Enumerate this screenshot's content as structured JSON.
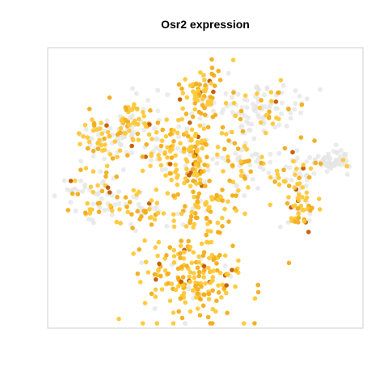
{
  "chart_data": {
    "type": "scatter",
    "title": "Osr2 expression",
    "xlabel": "",
    "ylabel": "",
    "xlim": [
      0,
      100
    ],
    "ylim": [
      0,
      100
    ],
    "grid": false,
    "axes_visible": false,
    "legend": "none",
    "colors": {
      "background": "#ffffff",
      "frame": "#cfcfcf",
      "unexpressed": "#e6e6e6",
      "expressed_low": "#ffc838",
      "expressed_mid": "#f3ad1a",
      "expressed_high": "#c25b00"
    },
    "clusters": [
      {
        "center": [
          49,
          87
        ],
        "spread": [
          3.5,
          4.5
        ],
        "n": 70,
        "expr": 0.9
      },
      {
        "center": [
          68,
          80
        ],
        "spread": [
          8,
          4.5
        ],
        "n": 120,
        "expr": 0.25
      },
      {
        "center": [
          26,
          74
        ],
        "spread": [
          6,
          5.5
        ],
        "n": 90,
        "expr": 0.55
      },
      {
        "center": [
          17,
          66
        ],
        "spread": [
          5,
          5
        ],
        "n": 70,
        "expr": 0.5
      },
      {
        "center": [
          40,
          63
        ],
        "spread": [
          5,
          6
        ],
        "n": 80,
        "expr": 0.75
      },
      {
        "center": [
          47,
          60
        ],
        "spread": [
          2.5,
          7
        ],
        "n": 70,
        "expr": 0.95
      },
      {
        "center": [
          62,
          58
        ],
        "spread": [
          5,
          6
        ],
        "n": 80,
        "expr": 0.55
      },
      {
        "center": [
          80,
          56
        ],
        "spread": [
          3.5,
          5
        ],
        "n": 50,
        "expr": 0.5
      },
      {
        "center": [
          92,
          60
        ],
        "spread": [
          4,
          2.5
        ],
        "n": 60,
        "expr": 0.05
      },
      {
        "center": [
          81,
          41
        ],
        "spread": [
          3,
          4
        ],
        "n": 45,
        "expr": 0.7
      },
      {
        "center": [
          14,
          48
        ],
        "spread": [
          5,
          6
        ],
        "n": 70,
        "expr": 0.45
      },
      {
        "center": [
          29,
          43
        ],
        "spread": [
          5,
          4
        ],
        "n": 50,
        "expr": 0.55
      },
      {
        "center": [
          52,
          42
        ],
        "spread": [
          6,
          4.5
        ],
        "n": 60,
        "expr": 0.85
      },
      {
        "center": [
          46,
          18
        ],
        "spread": [
          8,
          9
        ],
        "n": 210,
        "expr": 0.9
      }
    ]
  }
}
